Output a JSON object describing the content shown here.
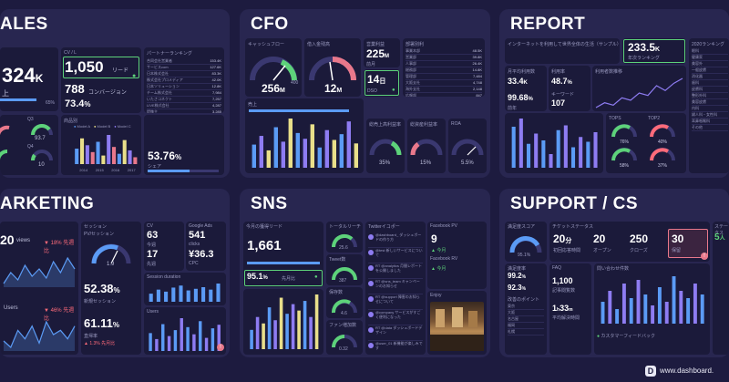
{
  "panels": {
    "sales": {
      "title": "ALES",
      "big_value": "324",
      "big_suffix": "K",
      "sub_label": "上",
      "pct_label": "65%",
      "cv_label": "CV / L",
      "cv_value": "1,050",
      "cv_unit": "リード",
      "second_value": "788",
      "second_unit": "コンバージョン",
      "third_value": "73.4",
      "third_unit": "%",
      "partner_title": "パートナーランキング",
      "partner_list": [
        "合同会社営業者",
        "サービスcom",
        "日本株式会社",
        "株式会社プロメディア",
        "日本ソリューション",
        "チーム株式会社",
        "いたさコネクト",
        "LIVE株式会社",
        "提携主"
      ],
      "partner_values": [
        "153.4K",
        "127.6K",
        "83.3K",
        "42.0K",
        "12.8K",
        "7,984",
        "7,257",
        "4,287",
        "3,285"
      ],
      "q3_label": "Q3",
      "q3_value": "93.7",
      "q4_label": "Q4",
      "q4_value": "10",
      "goods_label": "商品別",
      "legend": [
        "Model A",
        "Model B",
        "Model C"
      ],
      "xcats": [
        "2014",
        "2015",
        "2016",
        "2017"
      ],
      "share_value": "53.76",
      "share_unit": "%",
      "share_label": "シェア"
    },
    "cfo": {
      "title": "CFO",
      "cf_label": "キャッシュフロー",
      "cf_value": "256",
      "cf_unit": "M",
      "cf_max": "400",
      "inv_label": "借入金残高",
      "inv_value": "12",
      "inv_unit": "M",
      "profit_label": "営業利益",
      "profit_value": "225",
      "profit_unit": "M",
      "profit_sub": "前月",
      "dso_value": "14",
      "dso_unit": "日",
      "dso_sub": "DSO",
      "dept_label": "部署別利",
      "dept_list": [
        "事業本部",
        "営業部",
        "人事部",
        "総務部",
        "管理部",
        "大阪支社",
        "海外支社",
        "広報部"
      ],
      "dept_values": [
        "48.5K",
        "39.8K",
        "26.4K",
        "14.8K",
        "7,484",
        "4,748",
        "2,148",
        "847"
      ],
      "sales_label": "売上",
      "g1_label": "総売上高利益率",
      "g1_value": "35",
      "g2_label": "総資産利益率",
      "g2_value": "15",
      "g3_label": "ROA",
      "g3_value": "5.5"
    },
    "report": {
      "title": "REPORT",
      "headline": "インターネットを利用して世界全体の生活（サンプル）",
      "big_value": "233.5",
      "big_suffix": "K",
      "big_sub": "年次ランキング",
      "rank_title": "2020ランキング",
      "rank_list": [
        "眼科",
        "健康家",
        "美容外",
        "一般皮膚",
        "消化器",
        "歯科",
        "皮膚科",
        "整形外科",
        "美容皮膚",
        "内科",
        "婦人科・女性科",
        "耳鼻咽喉科",
        "その他"
      ],
      "monthly_label": "月平均利用数",
      "m_value": "33.4",
      "m_unit": "K",
      "ratio_label": "利用率",
      "ratio_value": "48.7",
      "ratio_unit": "%",
      "total_label": "利用者数推移",
      "pct2_value": "99.68",
      "pct2_unit": "%",
      "pct2_sub": "前年",
      "kw_label": "キーワード",
      "kw_value": "107",
      "top_label": "TOPS",
      "top2_label": "TOP2",
      "gauge_vals": [
        "76%",
        "40%",
        "58%",
        "37%"
      ]
    },
    "marketing": {
      "title": "ARKETING",
      "views_value": "20",
      "views_unit": "views",
      "views_change": "18",
      "views_change_text": "% 先週比",
      "users_unit": "Users",
      "users_change": "46",
      "users_change_text": "% 先週比",
      "session_label": "セッション",
      "pv_session": "PV/セッション",
      "pv_gauge": "1.9",
      "new_session": "52.38",
      "new_session_unit": "%",
      "new_session_label": "新規セッション",
      "bounce": "61.11",
      "bounce_unit": "%",
      "bounce_label": "直帰率",
      "bounce_change": "1.3",
      "bounce_change_text": "% 先月比",
      "cv_label": "CV",
      "cv1": "63",
      "cv1_sub": "今週",
      "cv2": "17",
      "cv2_sub": "先週",
      "ads_label": "Google Ads",
      "ads1": "541",
      "ads1_sub": "clicks",
      "ads2": "¥36.3",
      "ads2_sub": "CPC",
      "duration_label": "Session duration",
      "users_label": "Users"
    },
    "sns": {
      "title": "SNS",
      "leads_label": "今月の獲得リード",
      "leads_value": "1,661",
      "pct_value": "95.1",
      "pct_unit": "%",
      "pct_sub": "先月比",
      "total_label": "トータルリーチ",
      "total_value": "25.6",
      "tweet_label": "Tweet数",
      "tweet_value": "387",
      "save_label": "保存数",
      "save_value": "4.6",
      "fan_label": "ファン増加数",
      "fan_value": "0.32",
      "twitter_label": "Twitterイコポー",
      "tweets": [
        "@dashboard_ ダッシュボードの作り方",
        "@test 新しいサービスについて",
        "RT @analytics 月間レポートを公開しました",
        "RT @sns_team キャンペーンのお知らせ",
        "RT @support 障害のお知らせについて",
        "@company サービスがすごく便利になった",
        "RT @data ダッシュボードデザイン",
        "@user_01 新機能が楽しみです"
      ],
      "fb_label": "Facebook PV",
      "fb_value": "9",
      "fb_sub": "今月",
      "fb_rv_label": "Facebook RV",
      "enjoy_label": "Enjoy"
    },
    "support": {
      "title": "SUPPORT / CS",
      "score_label": "満足度スコア",
      "score_value": "95.1",
      "ticket_label": "チケットステータス",
      "t1": "20",
      "t1_unit": "分",
      "t1_sub": "初回応答時間",
      "t2": "20",
      "t2_sub": "オープン",
      "t3": "250",
      "t3_sub": "クローズ",
      "t4": "30",
      "t4_sub": "保留",
      "status_label": "ステータス",
      "status_value": "5",
      "status_unit": "人",
      "resp_label": "満足度率",
      "resp_value": "99.2",
      "resp_unit": "%",
      "resp2_value": "92.3",
      "faq_label": "FAQ",
      "faq_value": "1,100",
      "faq_sub": "記事閲覧数",
      "time_value": "1",
      "time_unit": "h",
      "time_min": "33",
      "time_sub": "平均解決時間",
      "inquiry_label": "問い合わせ件数",
      "point_label": "改善のポイント",
      "feedback_label": "カスタマーフィードバック",
      "points": [
        "東京",
        "大阪",
        "名古屋",
        "福岡",
        "札幌"
      ]
    }
  },
  "footer": {
    "brand": "www.dashboard."
  },
  "colors": {
    "bg": "#1d1b3f",
    "panel": "#282650",
    "card": "#1b1a3a",
    "blue": "#5b9bf5",
    "purple": "#8e7cf2",
    "yellow": "#e9df8a",
    "green": "#5dd27a",
    "red": "#ff6b7a"
  }
}
